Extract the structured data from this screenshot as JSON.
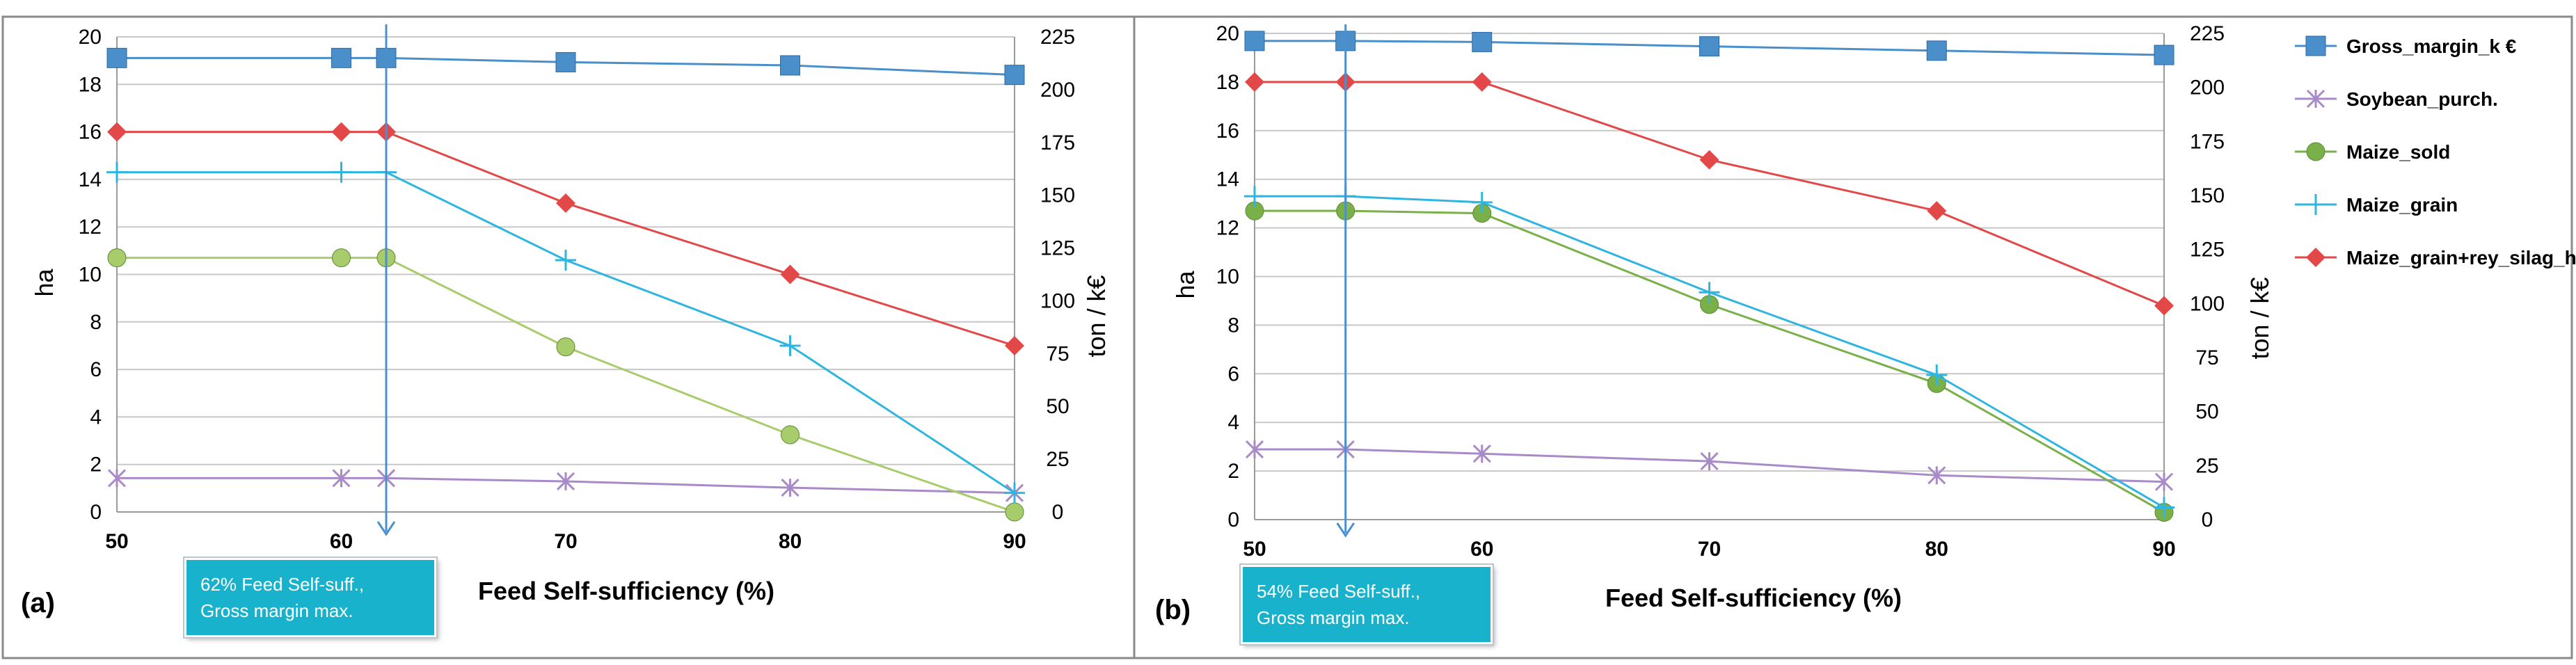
{
  "chart_data": [
    {
      "type": "line",
      "panel_label": "(a)",
      "xlabel": "Feed Self-sufficiency (%)",
      "ylabel": "ha",
      "y2label": "ton / k€",
      "x": [
        50,
        60,
        62,
        70,
        80,
        90
      ],
      "x_ticks": [
        "50",
        "60",
        "70",
        "80",
        "90"
      ],
      "xlim": [
        50,
        90
      ],
      "ylim": [
        0,
        20
      ],
      "y2lim": [
        0,
        225
      ],
      "y_ticks": [
        "0",
        "2",
        "4",
        "6",
        "8",
        "10",
        "12",
        "14",
        "16",
        "18",
        "20"
      ],
      "y2_ticks": [
        "0",
        "25",
        "50",
        "75",
        "100",
        "125",
        "150",
        "175",
        "200",
        "225"
      ],
      "grid": true,
      "series": [
        {
          "name": "Gross_margin_k €",
          "axis": "y2",
          "color": "#4a8fc9",
          "marker": "square",
          "values": [
            215,
            215,
            215,
            213,
            211.5,
            207
          ]
        },
        {
          "name": "Soybean_purch.",
          "axis": "y2",
          "color": "#a98ac9",
          "marker": "x",
          "values": [
            16,
            16,
            16,
            14.5,
            11.5,
            9
          ]
        },
        {
          "name": "Maize_sold",
          "axis": "y",
          "color": "#a8cc6c",
          "marker": "circle",
          "values": [
            10.7,
            10.7,
            10.7,
            6.95,
            3.25,
            0
          ]
        },
        {
          "name": "Maize_grain",
          "axis": "y",
          "color": "#2fb6e0",
          "marker": "plus",
          "values": [
            14.3,
            14.3,
            14.3,
            10.6,
            7,
            0.8
          ]
        },
        {
          "name": "Maize_grain+rey_silag_ha",
          "axis": "y",
          "color": "#e34848",
          "marker": "diamond",
          "values": [
            16,
            16,
            16,
            13,
            10,
            7
          ]
        }
      ],
      "optimum_x": 62,
      "annotation": [
        "62% Feed Self-suff.,",
        "Gross margin max."
      ]
    },
    {
      "type": "line",
      "panel_label": "(b)",
      "xlabel": "Feed Self-sufficiency (%)",
      "ylabel": "ha",
      "y2label": "ton / k€",
      "x": [
        50,
        54,
        60,
        70,
        80,
        90
      ],
      "x_ticks": [
        "50",
        "60",
        "70",
        "80",
        "90"
      ],
      "xlim": [
        50,
        90
      ],
      "ylim": [
        0,
        20
      ],
      "y2lim": [
        0,
        225
      ],
      "y_ticks": [
        "0",
        "2",
        "4",
        "6",
        "8",
        "10",
        "12",
        "14",
        "16",
        "18",
        "20"
      ],
      "y2_ticks": [
        "0",
        "25",
        "50",
        "75",
        "100",
        "125",
        "150",
        "175",
        "200",
        "225"
      ],
      "grid": true,
      "legend_position": "right",
      "series": [
        {
          "name": "Gross_margin_k €",
          "axis": "y2",
          "color": "#4a8fc9",
          "marker": "square",
          "values": [
            221.5,
            221.5,
            221,
            219,
            217,
            215
          ]
        },
        {
          "name": "Soybean_purch.",
          "axis": "y2",
          "color": "#a98ac9",
          "marker": "x",
          "values": [
            32.5,
            32.5,
            30.5,
            27,
            20.5,
            17.5
          ]
        },
        {
          "name": "Maize_sold",
          "axis": "y",
          "color": "#79b04a",
          "marker": "circle",
          "values": [
            12.7,
            12.7,
            12.6,
            8.85,
            5.6,
            0.3
          ]
        },
        {
          "name": "Maize_grain",
          "axis": "y",
          "color": "#2fb6e0",
          "marker": "plus",
          "values": [
            13.3,
            13.3,
            13.05,
            9.35,
            5.95,
            0.5
          ]
        },
        {
          "name": "Maize_grain+rey_silag_ha",
          "axis": "y",
          "color": "#e34848",
          "marker": "diamond",
          "values": [
            18,
            18,
            18,
            14.8,
            12.7,
            8.8
          ]
        }
      ],
      "optimum_x": 54,
      "annotation": [
        "54% Feed Self-suff.,",
        "Gross margin max."
      ]
    }
  ]
}
